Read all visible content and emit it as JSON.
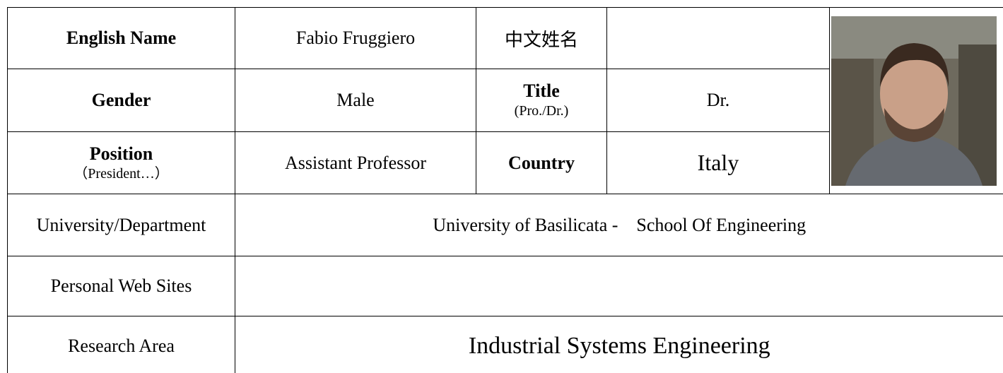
{
  "table": {
    "row1": {
      "label": "English Name",
      "value": "Fabio Fruggiero",
      "chinese_label": "中文姓名"
    },
    "row2": {
      "label": "Gender",
      "value": "Male",
      "title_label": "Title",
      "title_hint": "(Pro./Dr.)",
      "title_value": "Dr."
    },
    "row3": {
      "label": "Position",
      "label_hint": "（President…）",
      "value": "Assistant Professor",
      "country_label": "Country",
      "country_value": "Italy"
    },
    "row4": {
      "label": "University/Department",
      "value": "University of Basilicata -    School Of Engineering"
    },
    "row5": {
      "label": "Personal Web Sites"
    },
    "row6": {
      "label": "Research Area",
      "value": "Industrial Systems Engineering"
    }
  }
}
